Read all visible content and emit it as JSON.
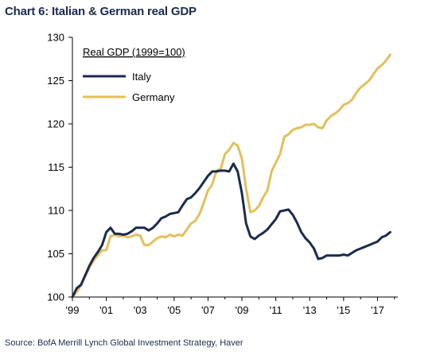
{
  "title": "Chart 6: Italian & German real GDP",
  "source": "Source:  BofA Merrill Lynch Global Investment Strategy, Haver",
  "chart_data": {
    "type": "line",
    "legend_title": "Real GDP (1999=100)",
    "legend_placement": "top-left",
    "xlim": [
      1999,
      2018.2
    ],
    "ylim": [
      100,
      130
    ],
    "yticks": [
      100,
      105,
      110,
      115,
      120,
      125,
      130
    ],
    "xticks": [
      {
        "value": 1999,
        "label": "'99"
      },
      {
        "value": 2001,
        "label": "'01"
      },
      {
        "value": 2003,
        "label": "'03"
      },
      {
        "value": 2005,
        "label": "'05"
      },
      {
        "value": 2007,
        "label": "'07"
      },
      {
        "value": 2009,
        "label": "'09"
      },
      {
        "value": 2011,
        "label": "'11"
      },
      {
        "value": 2013,
        "label": "'13"
      },
      {
        "value": 2015,
        "label": "'15"
      },
      {
        "value": 2017,
        "label": "'17"
      }
    ],
    "grid": false,
    "series": [
      {
        "name": "Italy",
        "color": "#1b2a4e",
        "points": [
          [
            1999.0,
            100.0
          ],
          [
            1999.25,
            101.0
          ],
          [
            1999.5,
            101.4
          ],
          [
            1999.75,
            102.5
          ],
          [
            2000.0,
            103.6
          ],
          [
            2000.25,
            104.5
          ],
          [
            2000.5,
            105.2
          ],
          [
            2000.75,
            106.0
          ],
          [
            2001.0,
            107.5
          ],
          [
            2001.25,
            108.0
          ],
          [
            2001.5,
            107.3
          ],
          [
            2001.75,
            107.3
          ],
          [
            2002.0,
            107.2
          ],
          [
            2002.25,
            107.3
          ],
          [
            2002.5,
            107.6
          ],
          [
            2002.75,
            108.0
          ],
          [
            2003.0,
            108.0
          ],
          [
            2003.25,
            108.0
          ],
          [
            2003.5,
            107.7
          ],
          [
            2003.75,
            108.0
          ],
          [
            2004.0,
            108.5
          ],
          [
            2004.25,
            109.1
          ],
          [
            2004.5,
            109.3
          ],
          [
            2004.75,
            109.6
          ],
          [
            2005.0,
            109.7
          ],
          [
            2005.25,
            109.8
          ],
          [
            2005.5,
            110.6
          ],
          [
            2005.75,
            111.3
          ],
          [
            2006.0,
            111.5
          ],
          [
            2006.25,
            112.0
          ],
          [
            2006.5,
            112.6
          ],
          [
            2006.75,
            113.3
          ],
          [
            2007.0,
            114.0
          ],
          [
            2007.25,
            114.5
          ],
          [
            2007.5,
            114.5
          ],
          [
            2007.75,
            114.6
          ],
          [
            2008.0,
            114.6
          ],
          [
            2008.25,
            114.5
          ],
          [
            2008.5,
            115.4
          ],
          [
            2008.75,
            114.5
          ],
          [
            2009.0,
            112.0
          ],
          [
            2009.25,
            108.5
          ],
          [
            2009.5,
            107.0
          ],
          [
            2009.75,
            106.7
          ],
          [
            2010.0,
            107.1
          ],
          [
            2010.25,
            107.4
          ],
          [
            2010.5,
            107.8
          ],
          [
            2010.75,
            108.4
          ],
          [
            2011.0,
            109.0
          ],
          [
            2011.25,
            109.9
          ],
          [
            2011.5,
            110.0
          ],
          [
            2011.75,
            110.1
          ],
          [
            2012.0,
            109.5
          ],
          [
            2012.25,
            108.6
          ],
          [
            2012.5,
            107.5
          ],
          [
            2012.75,
            106.8
          ],
          [
            2013.0,
            106.3
          ],
          [
            2013.25,
            105.6
          ],
          [
            2013.5,
            104.4
          ],
          [
            2013.75,
            104.5
          ],
          [
            2014.0,
            104.8
          ],
          [
            2014.25,
            104.8
          ],
          [
            2014.5,
            104.8
          ],
          [
            2014.75,
            104.8
          ],
          [
            2015.0,
            104.9
          ],
          [
            2015.25,
            104.8
          ],
          [
            2015.5,
            105.1
          ],
          [
            2015.75,
            105.4
          ],
          [
            2016.0,
            105.6
          ],
          [
            2016.25,
            105.8
          ],
          [
            2016.5,
            106.0
          ],
          [
            2016.75,
            106.2
          ],
          [
            2017.0,
            106.4
          ],
          [
            2017.25,
            106.9
          ],
          [
            2017.5,
            107.1
          ],
          [
            2017.75,
            107.5
          ]
        ]
      },
      {
        "name": "Germany",
        "color": "#e3bf5c",
        "points": [
          [
            1999.0,
            100.0
          ],
          [
            1999.25,
            100.6
          ],
          [
            1999.5,
            101.3
          ],
          [
            1999.75,
            102.4
          ],
          [
            2000.0,
            103.4
          ],
          [
            2000.25,
            104.2
          ],
          [
            2000.5,
            104.8
          ],
          [
            2000.75,
            105.4
          ],
          [
            2001.0,
            105.4
          ],
          [
            2001.25,
            107.0
          ],
          [
            2001.5,
            107.2
          ],
          [
            2001.75,
            107.0
          ],
          [
            2002.0,
            107.1
          ],
          [
            2002.25,
            106.9
          ],
          [
            2002.5,
            107.0
          ],
          [
            2002.75,
            107.2
          ],
          [
            2003.0,
            107.1
          ],
          [
            2003.25,
            106.0
          ],
          [
            2003.5,
            106.0
          ],
          [
            2003.75,
            106.4
          ],
          [
            2004.0,
            106.8
          ],
          [
            2004.25,
            107.0
          ],
          [
            2004.5,
            106.9
          ],
          [
            2004.75,
            107.2
          ],
          [
            2005.0,
            107.0
          ],
          [
            2005.25,
            107.2
          ],
          [
            2005.5,
            107.1
          ],
          [
            2005.75,
            107.8
          ],
          [
            2006.0,
            108.5
          ],
          [
            2006.25,
            108.8
          ],
          [
            2006.5,
            109.6
          ],
          [
            2006.75,
            110.9
          ],
          [
            2007.0,
            112.3
          ],
          [
            2007.25,
            113.0
          ],
          [
            2007.5,
            114.6
          ],
          [
            2007.75,
            114.8
          ],
          [
            2008.0,
            116.5
          ],
          [
            2008.25,
            117.0
          ],
          [
            2008.5,
            117.8
          ],
          [
            2008.75,
            117.5
          ],
          [
            2009.0,
            116.0
          ],
          [
            2009.25,
            112.5
          ],
          [
            2009.5,
            109.8
          ],
          [
            2009.75,
            110.0
          ],
          [
            2010.0,
            110.5
          ],
          [
            2010.25,
            111.5
          ],
          [
            2010.5,
            112.3
          ],
          [
            2010.75,
            114.5
          ],
          [
            2011.0,
            115.5
          ],
          [
            2011.25,
            116.5
          ],
          [
            2011.5,
            118.5
          ],
          [
            2011.75,
            118.8
          ],
          [
            2012.0,
            119.3
          ],
          [
            2012.25,
            119.5
          ],
          [
            2012.5,
            119.6
          ],
          [
            2012.75,
            119.9
          ],
          [
            2013.0,
            119.9
          ],
          [
            2013.25,
            120.0
          ],
          [
            2013.5,
            119.6
          ],
          [
            2013.75,
            119.5
          ],
          [
            2014.0,
            120.4
          ],
          [
            2014.25,
            120.9
          ],
          [
            2014.5,
            121.2
          ],
          [
            2014.75,
            121.6
          ],
          [
            2015.0,
            122.2
          ],
          [
            2015.25,
            122.4
          ],
          [
            2015.5,
            122.8
          ],
          [
            2015.75,
            123.6
          ],
          [
            2016.0,
            124.2
          ],
          [
            2016.25,
            124.6
          ],
          [
            2016.5,
            125.0
          ],
          [
            2016.75,
            125.7
          ],
          [
            2017.0,
            126.4
          ],
          [
            2017.25,
            126.8
          ],
          [
            2017.5,
            127.3
          ],
          [
            2017.75,
            128.0
          ]
        ]
      }
    ]
  }
}
